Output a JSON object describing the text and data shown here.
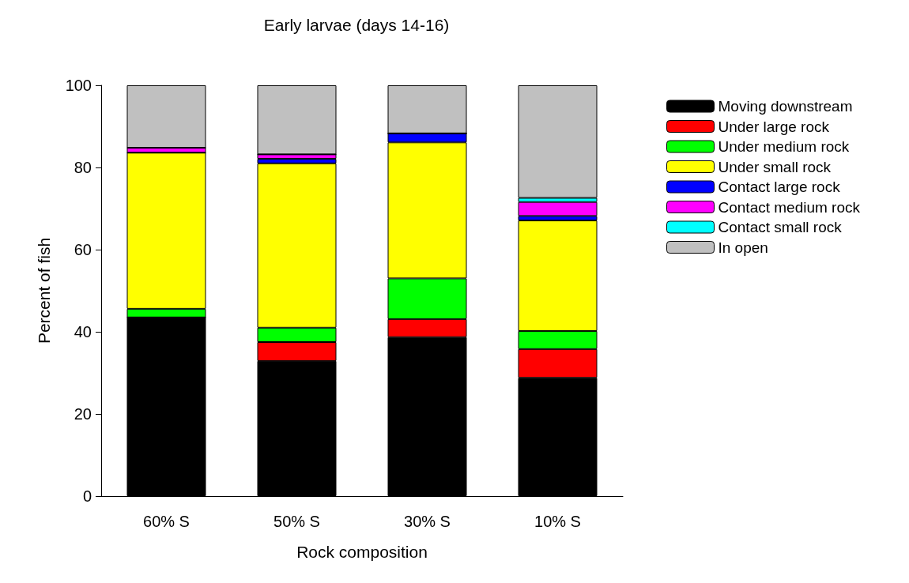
{
  "chart_data": {
    "type": "bar",
    "title": "Early larvae (days 14-16)",
    "xlabel": "Rock composition",
    "ylabel": "Percent of fish",
    "categories": [
      "60% S",
      "50% S",
      "30% S",
      "10% S"
    ],
    "stacked": true,
    "ylim": [
      0,
      100
    ],
    "yticks": [
      0,
      20,
      40,
      60,
      80,
      100
    ],
    "grid": false,
    "legend": "right",
    "series": [
      {
        "name": "Moving downstream",
        "color": "#000000",
        "values": [
          43.5,
          32.9,
          38.7,
          28.8
        ]
      },
      {
        "name": "Under large rock",
        "color": "#ff0000",
        "values": [
          0,
          4.6,
          4.4,
          7.0
        ]
      },
      {
        "name": "Under medium rock",
        "color": "#00ff00",
        "values": [
          2.1,
          3.5,
          9.9,
          4.4
        ]
      },
      {
        "name": "Under small rock",
        "color": "#ffff00",
        "values": [
          38.0,
          40.0,
          33.1,
          26.9
        ]
      },
      {
        "name": "Contact large rock",
        "color": "#0000ff",
        "values": [
          0,
          1.1,
          2.2,
          1.1
        ]
      },
      {
        "name": "Contact medium rock",
        "color": "#ff00ff",
        "values": [
          1.2,
          1.1,
          0,
          3.4
        ]
      },
      {
        "name": "Contact small rock",
        "color": "#00ffff",
        "values": [
          0,
          0,
          0,
          1.0
        ]
      },
      {
        "name": "In open",
        "color": "#c0c0c0",
        "values": [
          15.2,
          16.8,
          11.7,
          27.4
        ]
      }
    ]
  }
}
